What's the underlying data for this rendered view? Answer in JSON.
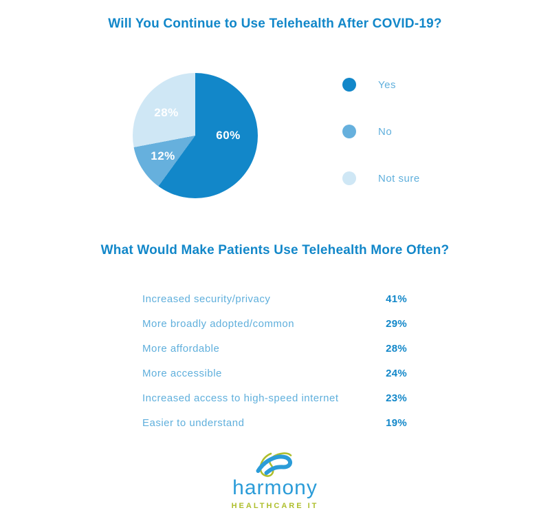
{
  "colors": {
    "background": "#ffffff",
    "title_blue": "#1287c9",
    "label_blue": "#5fafdc",
    "value_blue": "#1287c9",
    "slice_yes": "#1287c9",
    "slice_no": "#66b0dd",
    "slice_not_sure": "#cfe7f5",
    "pie_label_white": "#ffffff",
    "logo_blue": "#2b9cd8",
    "logo_green": "#aebe2b"
  },
  "sections": {
    "pie": {
      "title": "Will You Continue to Use Telehealth After COVID-19?"
    },
    "stats": {
      "title": "What Would Make Patients Use Telehealth More Often?"
    }
  },
  "chart_data": [
    {
      "type": "pie",
      "title": "Will You Continue to Use Telehealth After COVID-19?",
      "categories": [
        "Yes",
        "No",
        "Not sure"
      ],
      "values": [
        60,
        12,
        28
      ],
      "value_labels": [
        "60%",
        "12%",
        "28%"
      ],
      "colors": [
        "#1287c9",
        "#66b0dd",
        "#cfe7f5"
      ],
      "start_angle": "top",
      "direction": "clockwise",
      "legend_position": "right",
      "slice_label_color": "#ffffff"
    },
    {
      "type": "table",
      "title": "What Would Make Patients Use Telehealth More Often?",
      "categories": [
        "Increased security/privacy",
        "More broadly adopted/common",
        "More affordable",
        "More accessible",
        "Increased access to high-speed internet",
        "Easier to understand"
      ],
      "values": [
        41,
        29,
        28,
        24,
        23,
        19
      ],
      "value_labels": [
        "41%",
        "29%",
        "28%",
        "24%",
        "23%",
        "19%"
      ]
    }
  ],
  "logo": {
    "name": "harmony",
    "subtitle": "HEALTHCARE IT"
  }
}
